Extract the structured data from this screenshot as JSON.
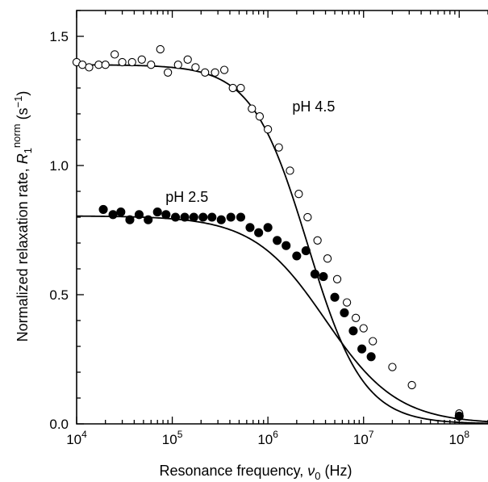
{
  "chart_data": {
    "type": "scatter",
    "xscale": "log",
    "xlim": [
      10000,
      200000000
    ],
    "ylim": [
      0,
      1.6
    ],
    "grid": false,
    "legend": "none",
    "xlabel": {
      "main": "Resonance frequency, ",
      "sym": "ν",
      "sub": "0",
      "unit": " (Hz)"
    },
    "ylabel": {
      "main": "Normalized relaxation rate, ",
      "sym": "R",
      "sub": "1",
      "sup": "norm",
      "unit": " (s",
      "unit_sup": "−1",
      "unit_end": ")"
    },
    "x_ticks": [
      {
        "value": 10000,
        "base": "10",
        "exp": "4"
      },
      {
        "value": 100000,
        "base": "10",
        "exp": "5"
      },
      {
        "value": 1000000,
        "base": "10",
        "exp": "6"
      },
      {
        "value": 10000000,
        "base": "10",
        "exp": "7"
      },
      {
        "value": 100000000,
        "base": "10",
        "exp": "8"
      }
    ],
    "y_ticks": [
      {
        "value": 0.0,
        "label": "0.0"
      },
      {
        "value": 0.5,
        "label": "0.5"
      },
      {
        "value": 1.0,
        "label": "1.0"
      },
      {
        "value": 1.5,
        "label": "1.5"
      }
    ],
    "series": [
      {
        "name": "pH 4.5",
        "marker": "open-circle",
        "color": "#000000",
        "label_at": [
          1800000,
          1.21
        ],
        "fit": {
          "plateau": 1.39,
          "tau_hz": 2600000,
          "exponent": 1.5
        },
        "points": [
          [
            10000,
            1.4
          ],
          [
            11500,
            1.39
          ],
          [
            13500,
            1.38
          ],
          [
            17000,
            1.39
          ],
          [
            20000,
            1.39
          ],
          [
            25000,
            1.43
          ],
          [
            30000,
            1.4
          ],
          [
            38000,
            1.4
          ],
          [
            48000,
            1.41
          ],
          [
            60000,
            1.39
          ],
          [
            75000,
            1.45
          ],
          [
            90000,
            1.36
          ],
          [
            115000,
            1.39
          ],
          [
            145000,
            1.41
          ],
          [
            175000,
            1.38
          ],
          [
            220000,
            1.36
          ],
          [
            280000,
            1.36
          ],
          [
            350000,
            1.37
          ],
          [
            430000,
            1.3
          ],
          [
            520000,
            1.3
          ],
          [
            680000,
            1.22
          ],
          [
            820000,
            1.19
          ],
          [
            1000000,
            1.14
          ],
          [
            1300000,
            1.07
          ],
          [
            1700000,
            0.98
          ],
          [
            2100000,
            0.89
          ],
          [
            2600000,
            0.8
          ],
          [
            3300000,
            0.71
          ],
          [
            4200000,
            0.64
          ],
          [
            5300000,
            0.56
          ],
          [
            6700000,
            0.47
          ],
          [
            8300000,
            0.41
          ],
          [
            10000000,
            0.37
          ],
          [
            12500000,
            0.32
          ],
          [
            20000000,
            0.22
          ],
          [
            32000000,
            0.15
          ],
          [
            100000000,
            0.04
          ]
        ]
      },
      {
        "name": "pH 2.5",
        "marker": "filled-circle",
        "color": "#000000",
        "label_at": [
          85000,
          0.86
        ],
        "fit": {
          "plateau": 0.805,
          "tau_hz": 4000000,
          "exponent": 1.15
        },
        "points": [
          [
            19000,
            0.83
          ],
          [
            24000,
            0.81
          ],
          [
            29000,
            0.82
          ],
          [
            36000,
            0.79
          ],
          [
            45000,
            0.81
          ],
          [
            56000,
            0.79
          ],
          [
            70000,
            0.82
          ],
          [
            86000,
            0.81
          ],
          [
            108000,
            0.8
          ],
          [
            135000,
            0.8
          ],
          [
            168000,
            0.8
          ],
          [
            210000,
            0.8
          ],
          [
            260000,
            0.8
          ],
          [
            325000,
            0.79
          ],
          [
            410000,
            0.8
          ],
          [
            520000,
            0.8
          ],
          [
            650000,
            0.76
          ],
          [
            800000,
            0.74
          ],
          [
            1000000,
            0.76
          ],
          [
            1250000,
            0.71
          ],
          [
            1550000,
            0.69
          ],
          [
            2000000,
            0.65
          ],
          [
            2500000,
            0.67
          ],
          [
            3100000,
            0.58
          ],
          [
            3800000,
            0.57
          ],
          [
            5000000,
            0.49
          ],
          [
            6300000,
            0.43
          ],
          [
            7800000,
            0.36
          ],
          [
            9600000,
            0.29
          ],
          [
            12000000,
            0.26
          ],
          [
            100000000,
            0.03
          ]
        ]
      }
    ]
  }
}
